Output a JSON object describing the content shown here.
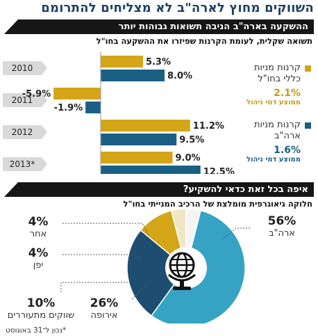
{
  "title": "השווקים מחוץ לארה\"ב לא מצליחים להתרומם",
  "section1": {
    "heading": "ההשקעה בארה\"ב הניבה תשואות גבוהות יותר",
    "subtitle": "תשואה שקלית, לעומת הקרנות שפיזרו את ההשקעה בחו\"ל"
  },
  "section2": {
    "heading": "איפה בכל זאת כדאי להשקיע?",
    "subtitle": "חלוקה גיאוגרפית מומלצת של הרכיב המנייתי בחו\"ל"
  },
  "legend": {
    "series1": {
      "name_line1": "קרנות מניות",
      "name_line2": "כללי בחו\"ל",
      "fee": "2.1%",
      "fee_label": "ממוצע דמי ניהול"
    },
    "series2": {
      "name_line1": "קרנות מניות",
      "name_line2": "ארה\"ב",
      "fee": "1.6%",
      "fee_label": "ממוצע דמי ניהול"
    }
  },
  "footnote": "*נכון ל־31 באוגוסט",
  "colors": {
    "gold": "#d4a617",
    "blue": "#1a5f84",
    "cyan": "#36a3c4",
    "navy": "#1d4e72",
    "cream": "#efe7c4",
    "light": "#f5f5f5",
    "year_tag": "#d9d9d9",
    "title": "#1e3f66"
  },
  "chart_data": [
    {
      "type": "bar",
      "orientation": "horizontal",
      "categories": [
        "2010",
        "2011",
        "2012",
        "2013*"
      ],
      "series": [
        {
          "name": "קרנות מניות כללי בחו\"ל",
          "color": "#d4a617",
          "values": [
            5.3,
            -5.9,
            11.2,
            9.0
          ],
          "labels": [
            "5.3%",
            "-5.9%",
            "11.2%",
            "9.0%"
          ]
        },
        {
          "name": "קרנות מניות ארה\"ב",
          "color": "#1a5f84",
          "values": [
            8.0,
            -1.9,
            9.5,
            12.5
          ],
          "labels": [
            "8.0%",
            "-1.9%",
            "9.5%",
            "12.5%"
          ]
        }
      ],
      "unit": "%"
    },
    {
      "type": "pie",
      "slices": [
        {
          "label": "ארה\"ב",
          "value": 56,
          "text": "56%",
          "color": "#36a3c4"
        },
        {
          "label": "אירופה",
          "value": 26,
          "text": "26%",
          "color": "#1d4e72"
        },
        {
          "label": "שווקים מתעוררים",
          "value": 10,
          "text": "10%",
          "color": "#d4a617"
        },
        {
          "label": "יפן",
          "value": 4,
          "text": "4%",
          "color": "#efe7c4"
        },
        {
          "label": "אחר",
          "value": 4,
          "text": "4%",
          "color": "#f5f5f5"
        }
      ]
    }
  ]
}
